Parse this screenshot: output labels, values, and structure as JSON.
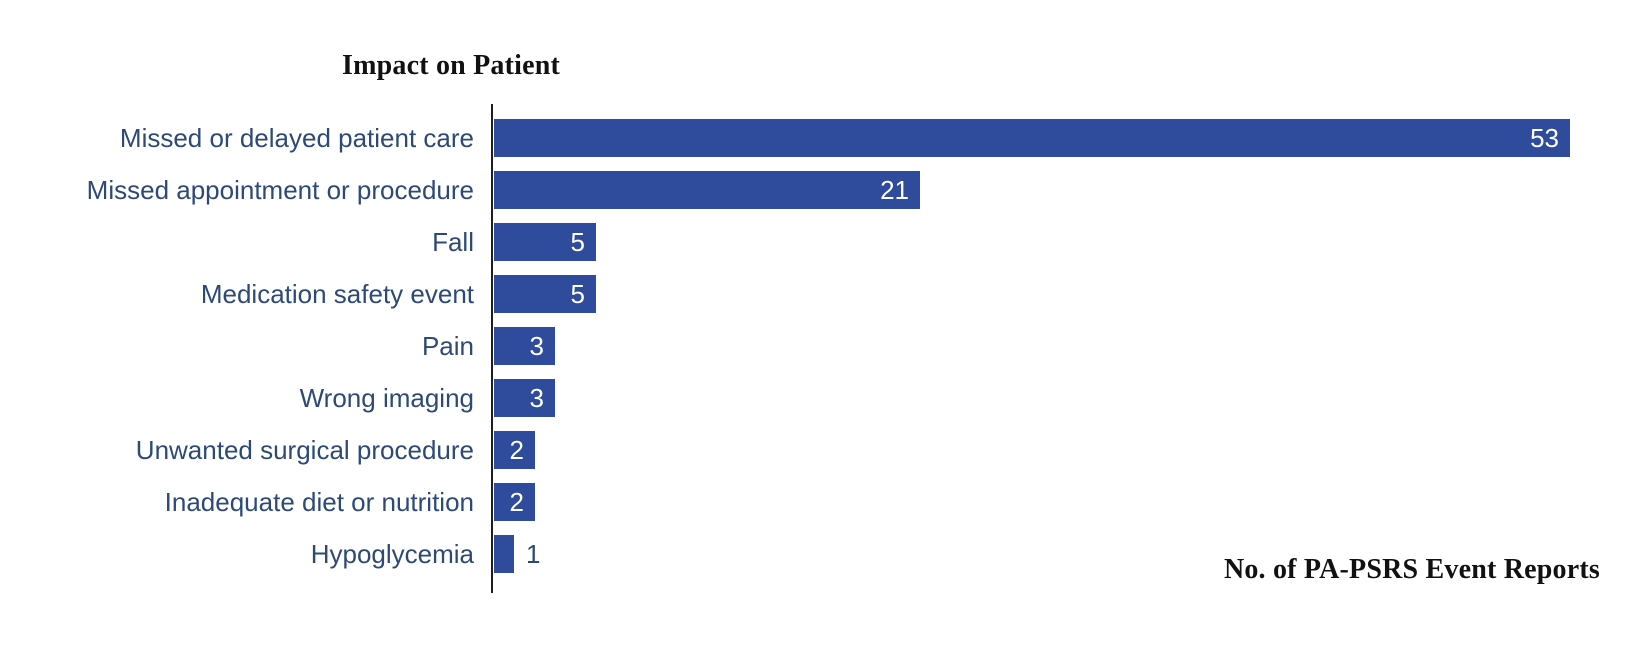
{
  "chart_data": {
    "type": "bar",
    "orientation": "horizontal",
    "title": "Impact on Patient",
    "xlabel": "No. of PA-PSRS Event Reports",
    "ylabel": "",
    "categories": [
      "Missed or delayed patient care",
      "Missed appointment or procedure",
      "Fall",
      "Medication safety event",
      "Pain",
      "Wrong imaging",
      "Unwanted surgical procedure",
      "Inadequate diet or nutrition",
      "Hypoglycemia"
    ],
    "values": [
      53,
      21,
      5,
      5,
      3,
      3,
      2,
      2,
      1
    ],
    "xlim": [
      0,
      53
    ],
    "grid": false,
    "legend": false,
    "data_labels": true,
    "colors": {
      "bar_fill": "#2f4b9b",
      "category_label": "#2d4a77",
      "value_label_inside": "#ffffff",
      "value_label_outside": "#2d4a77",
      "axis_line": "#1f1f1f",
      "title_text": "#111111",
      "background": "#ffffff"
    }
  }
}
